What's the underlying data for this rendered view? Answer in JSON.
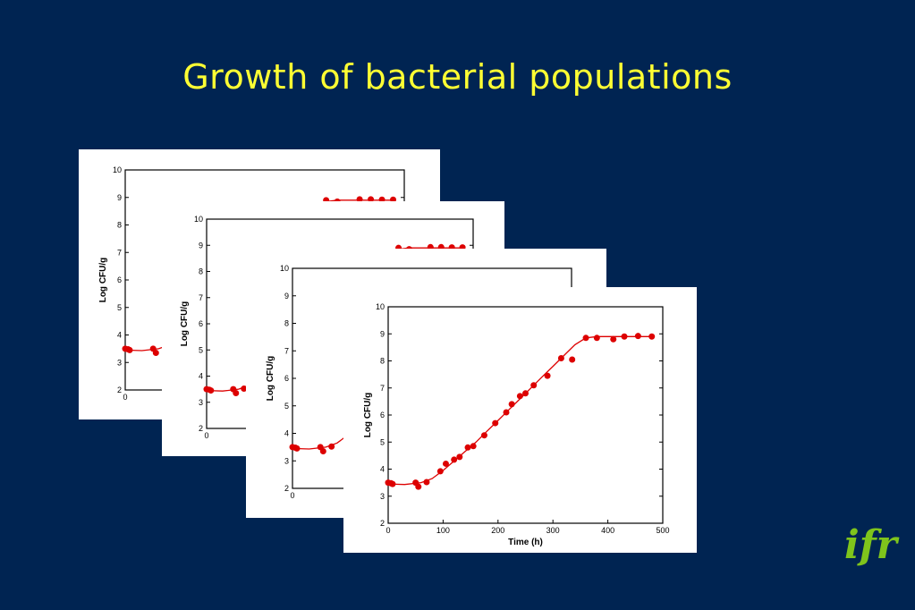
{
  "slide": {
    "title": "Growth of bacterial populations",
    "logo_text": "ifr",
    "colors": {
      "background": "#002452",
      "title": "#ffff33",
      "logo": "#7fc41c",
      "series": "#dd0000"
    }
  },
  "chart_data": [
    {
      "type": "scatter",
      "ylabel": "Log CFU/g",
      "xlabel": "",
      "ylim": [
        2,
        10
      ],
      "yticks": [
        2,
        3,
        4,
        5,
        6,
        7,
        8,
        9,
        10
      ],
      "xticks_visible": [
        0
      ],
      "points_visible": [
        [
          0,
          3.5
        ],
        [
          5,
          3.48
        ],
        [
          8,
          3.45
        ],
        [
          50,
          3.5
        ],
        [
          55,
          3.35
        ],
        [
          360,
          8.9
        ],
        [
          380,
          8.85
        ],
        [
          420,
          8.93
        ],
        [
          440,
          8.93
        ],
        [
          460,
          8.92
        ],
        [
          480,
          8.92
        ]
      ]
    },
    {
      "type": "scatter",
      "ylabel": "Log CFU/g",
      "xlabel": "",
      "ylim": [
        2,
        10
      ],
      "yticks": [
        2,
        3,
        4,
        5,
        6,
        7,
        8,
        9,
        10
      ],
      "xticks_visible": [
        0
      ],
      "points_visible": [
        [
          0,
          3.5
        ],
        [
          5,
          3.48
        ],
        [
          8,
          3.45
        ],
        [
          50,
          3.5
        ],
        [
          55,
          3.35
        ],
        [
          70,
          3.52
        ],
        [
          360,
          8.9
        ],
        [
          380,
          8.85
        ],
        [
          420,
          8.93
        ],
        [
          440,
          8.93
        ],
        [
          460,
          8.92
        ],
        [
          480,
          8.92
        ]
      ]
    },
    {
      "type": "scatter",
      "ylabel": "Log CFU/g",
      "xlabel": "",
      "ylim": [
        2,
        10
      ],
      "yticks": [
        2,
        3,
        4,
        5,
        6,
        7,
        8,
        9,
        10
      ],
      "xticks_visible": [
        0
      ],
      "points_visible": [
        [
          0,
          3.5
        ],
        [
          5,
          3.48
        ],
        [
          8,
          3.45
        ],
        [
          50,
          3.5
        ],
        [
          55,
          3.35
        ],
        [
          70,
          3.52
        ]
      ]
    },
    {
      "type": "scatter",
      "xlabel": "Time (h)",
      "ylabel": "Log CFU/g",
      "xlim": [
        0,
        500
      ],
      "ylim": [
        2,
        10
      ],
      "xticks": [
        0,
        100,
        200,
        300,
        400,
        500
      ],
      "yticks": [
        2,
        3,
        4,
        5,
        6,
        7,
        8,
        9,
        10
      ],
      "series": [
        {
          "points": [
            [
              0,
              3.5
            ],
            [
              5,
              3.48
            ],
            [
              8,
              3.45
            ],
            [
              50,
              3.5
            ],
            [
              55,
              3.35
            ],
            [
              70,
              3.52
            ],
            [
              95,
              3.92
            ],
            [
              105,
              4.2
            ],
            [
              120,
              4.35
            ],
            [
              130,
              4.45
            ],
            [
              145,
              4.8
            ],
            [
              155,
              4.85
            ],
            [
              175,
              5.25
            ],
            [
              195,
              5.7
            ],
            [
              215,
              6.1
            ],
            [
              225,
              6.4
            ],
            [
              240,
              6.7
            ],
            [
              250,
              6.8
            ],
            [
              265,
              7.1
            ],
            [
              290,
              7.45
            ],
            [
              315,
              8.1
            ],
            [
              335,
              8.05
            ],
            [
              360,
              8.85
            ],
            [
              380,
              8.85
            ],
            [
              410,
              8.8
            ],
            [
              430,
              8.9
            ],
            [
              455,
              8.92
            ],
            [
              480,
              8.9
            ]
          ]
        }
      ],
      "fit_curve": [
        [
          0,
          3.45
        ],
        [
          30,
          3.43
        ],
        [
          60,
          3.5
        ],
        [
          80,
          3.65
        ],
        [
          100,
          3.95
        ],
        [
          120,
          4.3
        ],
        [
          140,
          4.65
        ],
        [
          160,
          5.0
        ],
        [
          180,
          5.4
        ],
        [
          200,
          5.8
        ],
        [
          220,
          6.2
        ],
        [
          240,
          6.6
        ],
        [
          260,
          7.0
        ],
        [
          280,
          7.4
        ],
        [
          300,
          7.8
        ],
        [
          320,
          8.2
        ],
        [
          340,
          8.6
        ],
        [
          360,
          8.85
        ],
        [
          380,
          8.9
        ],
        [
          400,
          8.9
        ],
        [
          440,
          8.9
        ],
        [
          480,
          8.9
        ]
      ]
    }
  ]
}
